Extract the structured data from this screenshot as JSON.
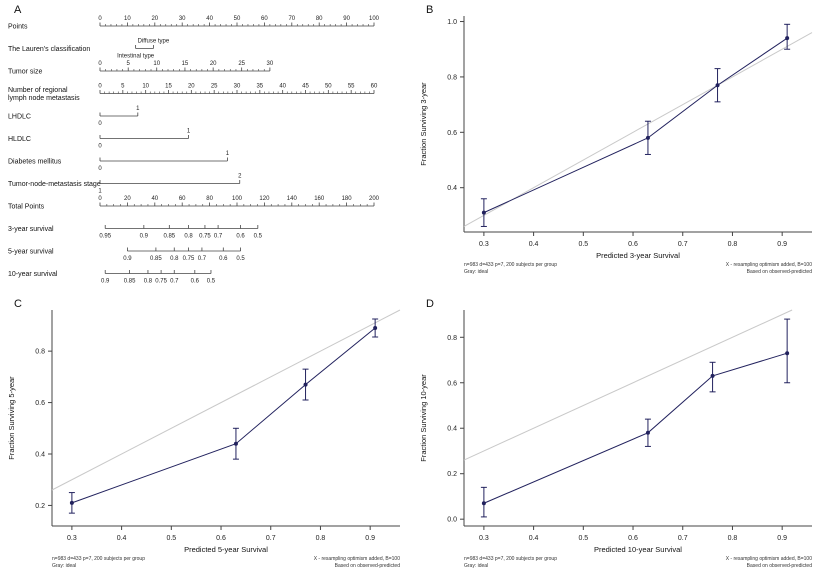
{
  "panel_labels": {
    "a": "A",
    "b": "B",
    "c": "C",
    "d": "D"
  },
  "colors": {
    "series": "#22225e",
    "ideal": "#c9c9c9",
    "axis": "#444444"
  },
  "chart_data": [
    {
      "type": "nomogram",
      "panel": "A",
      "rows": [
        {
          "label_lines": [
            "Points"
          ],
          "axis": [
            0,
            1
          ],
          "minor_per_gap": 4,
          "ticks": [
            {
              "label": "0",
              "at": 0
            },
            {
              "label": "10",
              "at": 0.1
            },
            {
              "label": "20",
              "at": 0.2
            },
            {
              "label": "30",
              "at": 0.3
            },
            {
              "label": "40",
              "at": 0.4
            },
            {
              "label": "50",
              "at": 0.5
            },
            {
              "label": "60",
              "at": 0.6
            },
            {
              "label": "70",
              "at": 0.7
            },
            {
              "label": "80",
              "at": 0.8
            },
            {
              "label": "90",
              "at": 0.9
            },
            {
              "label": "100",
              "at": 1
            }
          ]
        },
        {
          "label_lines": [
            "The Lauren's classification"
          ],
          "axis": [
            0.13,
            0.195
          ],
          "ticks": [
            {
              "label": "Diffuse type",
              "at": 0.195,
              "side": "above"
            },
            {
              "label": "Intestinal type",
              "at": 0.13,
              "side": "below"
            }
          ]
        },
        {
          "label_lines": [
            "Tumor size"
          ],
          "axis": [
            0,
            0.62
          ],
          "minor_per_gap": 4,
          "ticks": [
            {
              "label": "0",
              "at": 0
            },
            {
              "label": "5",
              "at": 0.103
            },
            {
              "label": "10",
              "at": 0.207
            },
            {
              "label": "15",
              "at": 0.31
            },
            {
              "label": "20",
              "at": 0.413
            },
            {
              "label": "25",
              "at": 0.517
            },
            {
              "label": "30",
              "at": 0.62
            }
          ]
        },
        {
          "label_lines": [
            "Number of regional",
            "lymph node metastasis"
          ],
          "axis": [
            0,
            1
          ],
          "minor_per_gap": 4,
          "ticks": [
            {
              "label": "0",
              "at": 0
            },
            {
              "label": "5",
              "at": 0.0833
            },
            {
              "label": "10",
              "at": 0.1667
            },
            {
              "label": "15",
              "at": 0.25
            },
            {
              "label": "20",
              "at": 0.3333
            },
            {
              "label": "25",
              "at": 0.4167
            },
            {
              "label": "30",
              "at": 0.5
            },
            {
              "label": "35",
              "at": 0.5833
            },
            {
              "label": "40",
              "at": 0.6667
            },
            {
              "label": "45",
              "at": 0.75
            },
            {
              "label": "50",
              "at": 0.8333
            },
            {
              "label": "55",
              "at": 0.9167
            },
            {
              "label": "60",
              "at": 1
            }
          ]
        },
        {
          "label_lines": [
            "LHDLC"
          ],
          "axis": [
            0,
            0.138
          ],
          "ticks": [
            {
              "label": "1",
              "at": 0.138,
              "side": "above"
            },
            {
              "label": "0",
              "at": 0,
              "side": "below"
            }
          ]
        },
        {
          "label_lines": [
            "HLDLC"
          ],
          "axis": [
            0,
            0.323
          ],
          "ticks": [
            {
              "label": "1",
              "at": 0.323,
              "side": "above"
            },
            {
              "label": "0",
              "at": 0,
              "side": "below"
            }
          ]
        },
        {
          "label_lines": [
            "Diabetes mellitus"
          ],
          "axis": [
            0,
            0.465
          ],
          "ticks": [
            {
              "label": "1",
              "at": 0.465,
              "side": "above"
            },
            {
              "label": "0",
              "at": 0,
              "side": "below"
            }
          ]
        },
        {
          "label_lines": [
            "Tumor-node-metastasis stage"
          ],
          "axis": [
            0,
            0.51
          ],
          "ticks": [
            {
              "label": "2",
              "at": 0.51,
              "side": "above"
            },
            {
              "label": "1",
              "at": 0,
              "side": "below"
            }
          ]
        },
        {
          "label_lines": [
            "Total Points"
          ],
          "axis": [
            0,
            1
          ],
          "minor_per_gap": 3,
          "ticks": [
            {
              "label": "0",
              "at": 0
            },
            {
              "label": "20",
              "at": 0.1
            },
            {
              "label": "40",
              "at": 0.2
            },
            {
              "label": "60",
              "at": 0.3
            },
            {
              "label": "80",
              "at": 0.4
            },
            {
              "label": "100",
              "at": 0.5
            },
            {
              "label": "120",
              "at": 0.6
            },
            {
              "label": "140",
              "at": 0.7
            },
            {
              "label": "160",
              "at": 0.8
            },
            {
              "label": "180",
              "at": 0.9
            },
            {
              "label": "200",
              "at": 1
            }
          ]
        },
        {
          "label_lines": [
            "3-year survival"
          ],
          "axis": [
            0.019,
            0.576
          ],
          "ticks": [
            {
              "label": "0.95",
              "at": 0.019,
              "side": "below"
            },
            {
              "label": "0.9",
              "at": 0.16,
              "side": "below"
            },
            {
              "label": "0.85",
              "at": 0.253,
              "side": "below"
            },
            {
              "label": "0.8",
              "at": 0.323,
              "side": "below"
            },
            {
              "label": "0.75",
              "at": 0.383,
              "side": "below"
            },
            {
              "label": "0.7",
              "at": 0.431,
              "side": "below"
            },
            {
              "label": "0.6",
              "at": 0.513,
              "side": "below"
            },
            {
              "label": "0.5",
              "at": 0.576,
              "side": "below"
            }
          ]
        },
        {
          "label_lines": [
            "5-year survival"
          ],
          "axis": [
            0.1,
            0.513
          ],
          "ticks": [
            {
              "label": "0.9",
              "at": 0.1,
              "side": "below"
            },
            {
              "label": "0.85",
              "at": 0.204,
              "side": "below"
            },
            {
              "label": "0.8",
              "at": 0.271,
              "side": "below"
            },
            {
              "label": "0.75",
              "at": 0.323,
              "side": "below"
            },
            {
              "label": "0.7",
              "at": 0.372,
              "side": "below"
            },
            {
              "label": "0.6",
              "at": 0.45,
              "side": "below"
            },
            {
              "label": "0.5",
              "at": 0.513,
              "side": "below"
            }
          ]
        },
        {
          "label_lines": [
            "10-year survival"
          ],
          "axis": [
            0.019,
            0.405
          ],
          "ticks": [
            {
              "label": "0.9",
              "at": 0.019,
              "side": "below"
            },
            {
              "label": "0.85",
              "at": 0.108,
              "side": "below"
            },
            {
              "label": "0.8",
              "at": 0.175,
              "side": "below"
            },
            {
              "label": "0.75",
              "at": 0.223,
              "side": "below"
            },
            {
              "label": "0.7",
              "at": 0.271,
              "side": "below"
            },
            {
              "label": "0.6",
              "at": 0.346,
              "side": "below"
            },
            {
              "label": "0.5",
              "at": 0.405,
              "side": "below"
            }
          ]
        }
      ]
    },
    {
      "type": "line",
      "panel": "B",
      "xlabel": "Predicted 3-year Survival",
      "ylabel": "Fraction Surviving 3-year",
      "xlim": [
        0.26,
        0.96
      ],
      "ylim": [
        0.24,
        1.02
      ],
      "xticks": [
        0.3,
        0.4,
        0.5,
        0.6,
        0.7,
        0.8,
        0.9
      ],
      "yticks": [
        0.4,
        0.6,
        0.8,
        1.0
      ],
      "x": [
        0.3,
        0.63,
        0.77,
        0.91
      ],
      "y": [
        0.31,
        0.58,
        0.77,
        0.94
      ],
      "y_low": [
        0.26,
        0.52,
        0.71,
        0.9
      ],
      "y_high": [
        0.36,
        0.64,
        0.83,
        0.99
      ],
      "footnote_left": [
        "n=983 d=433 p=7, 200 subjects per group",
        "Gray: ideal"
      ],
      "footnote_right": [
        "X - resampling optimism added, B=100",
        "Based on observed-predicted"
      ]
    },
    {
      "type": "line",
      "panel": "C",
      "xlabel": "Predicted 5-year Survival",
      "ylabel": "Fraction Surviving 5-year",
      "xlim": [
        0.26,
        0.96
      ],
      "ylim": [
        0.12,
        0.96
      ],
      "xticks": [
        0.3,
        0.4,
        0.5,
        0.6,
        0.7,
        0.8,
        0.9
      ],
      "yticks": [
        0.2,
        0.4,
        0.6,
        0.8
      ],
      "x": [
        0.3,
        0.63,
        0.77,
        0.91
      ],
      "y": [
        0.21,
        0.44,
        0.67,
        0.89
      ],
      "y_low": [
        0.17,
        0.38,
        0.61,
        0.855
      ],
      "y_high": [
        0.25,
        0.5,
        0.73,
        0.925
      ],
      "footnote_left": [
        "n=983 d=433 p=7, 200 subjects per group",
        "Gray: ideal"
      ],
      "footnote_right": [
        "X - resampling optimism added, B=100",
        "Based on observed-predicted"
      ]
    },
    {
      "type": "line",
      "panel": "D",
      "xlabel": "Predicted 10-year Survival",
      "ylabel": "Fraction Surviving 10-year",
      "xlim": [
        0.26,
        0.96
      ],
      "ylim": [
        -0.03,
        0.92
      ],
      "xticks": [
        0.3,
        0.4,
        0.5,
        0.6,
        0.7,
        0.8,
        0.9
      ],
      "yticks": [
        0.0,
        0.2,
        0.4,
        0.6,
        0.8
      ],
      "x": [
        0.3,
        0.63,
        0.76,
        0.91
      ],
      "y": [
        0.07,
        0.38,
        0.63,
        0.73
      ],
      "y_low": [
        0.01,
        0.32,
        0.56,
        0.6
      ],
      "y_high": [
        0.14,
        0.44,
        0.69,
        0.88
      ],
      "footnote_left": [
        "n=983 d=433 p=7, 200 subjects per group",
        "Gray: ideal"
      ],
      "footnote_right": [
        "X - resampling optimism added, B=100",
        "Based on observed-predicted"
      ]
    }
  ]
}
